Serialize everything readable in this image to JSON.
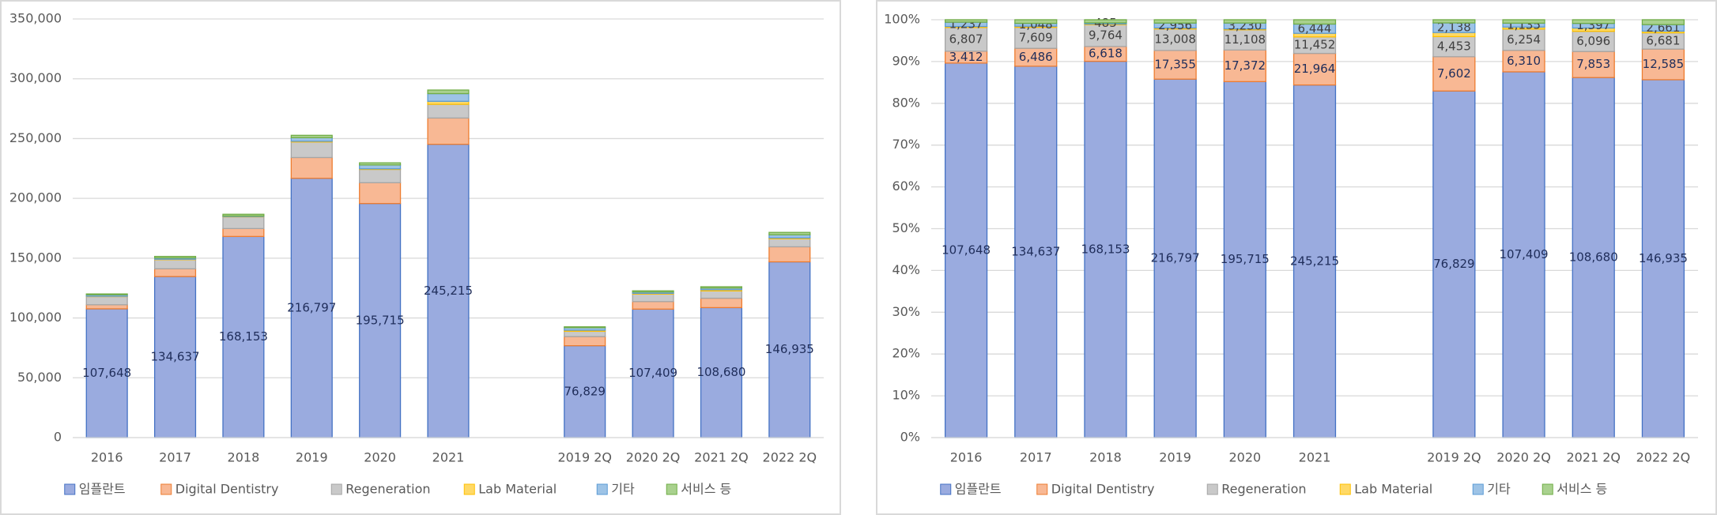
{
  "chart_data": [
    {
      "type": "bar",
      "stacked": "absolute",
      "categories": [
        "2016",
        "2017",
        "2018",
        "2019",
        "2020",
        "2021",
        null,
        "2019 2Q",
        "2020 2Q",
        "2021 2Q",
        "2022 2Q"
      ],
      "ylim": [
        0,
        350000
      ],
      "yticks": [
        0,
        {
          "value": 50000,
          "label": "50,000"
        },
        {
          "value": 100000,
          "label": "100,000"
        },
        {
          "value": 150000,
          "label": "150,000"
        },
        {
          "value": 200000,
          "label": "200,000"
        },
        {
          "value": 250000,
          "label": "250,000"
        },
        {
          "value": 300000,
          "label": "300,000"
        },
        {
          "value": 350000,
          "label": "350,000"
        }
      ],
      "grid": true,
      "legend": "bottom",
      "series": [
        {
          "name": "임플란트",
          "color": "#9aabdf",
          "values": [
            107648,
            134637,
            168153,
            216797,
            195715,
            245215,
            null,
            76829,
            107409,
            108680,
            146935
          ],
          "value_labels": [
            "107,648",
            "134,637",
            "168,153",
            "216,797",
            "195,715",
            "245,215",
            null,
            "76,829",
            "107,409",
            "108,680",
            "146,935"
          ]
        },
        {
          "name": "Digital Dentistry",
          "color": "#f8b894",
          "values": [
            3412,
            6486,
            6618,
            17355,
            17372,
            21964,
            null,
            7602,
            6310,
            7853,
            12585
          ]
        },
        {
          "name": "Regeneration",
          "color": "#c9c9c9",
          "values": [
            6807,
            7609,
            9764,
            13008,
            11108,
            11452,
            null,
            4453,
            6254,
            6096,
            6681
          ]
        },
        {
          "name": "Lab Material",
          "color": "#ffd966",
          "values": [
            300,
            400,
            300,
            600,
            500,
            2500,
            null,
            900,
            600,
            1000,
            700
          ]
        },
        {
          "name": "기타",
          "color": "#9dc3e6",
          "values": [
            1237,
            1048,
            485,
            2956,
            3230,
            6444,
            null,
            2138,
            1135,
            1397,
            2661
          ]
        },
        {
          "name": "서비스 등",
          "color": "#a9d18e",
          "values": [
            700,
            1300,
            1400,
            2000,
            1800,
            3000,
            null,
            700,
            1000,
            1100,
            2000
          ]
        }
      ]
    },
    {
      "type": "bar",
      "stacked": "percent",
      "categories": [
        "2016",
        "2017",
        "2018",
        "2019",
        "2020",
        "2021",
        null,
        "2019 2Q",
        "2020 2Q",
        "2021 2Q",
        "2022 2Q"
      ],
      "ylim": [
        0,
        100
      ],
      "yticks": [
        {
          "value": 0,
          "label": "0%"
        },
        {
          "value": 10,
          "label": "10%"
        },
        {
          "value": 20,
          "label": "20%"
        },
        {
          "value": 30,
          "label": "30%"
        },
        {
          "value": 40,
          "label": "40%"
        },
        {
          "value": 50,
          "label": "50%"
        },
        {
          "value": 60,
          "label": "60%"
        },
        {
          "value": 70,
          "label": "70%"
        },
        {
          "value": 80,
          "label": "80%"
        },
        {
          "value": 90,
          "label": "90%"
        },
        {
          "value": 100,
          "label": "100%"
        }
      ],
      "grid": true,
      "legend": "bottom",
      "series": [
        {
          "name": "임플란트",
          "color": "#9aabdf",
          "values": [
            107648,
            134637,
            168153,
            216797,
            195715,
            245215,
            null,
            76829,
            107409,
            108680,
            146935
          ],
          "value_labels": [
            "107,648",
            "134,637",
            "168,153",
            "216,797",
            "195,715",
            "245,215",
            null,
            "76,829",
            "107,409",
            "108,680",
            "146,935"
          ]
        },
        {
          "name": "Digital Dentistry",
          "color": "#f8b894",
          "values": [
            3412,
            6486,
            6618,
            17355,
            17372,
            21964,
            null,
            7602,
            6310,
            7853,
            12585
          ],
          "value_labels": [
            "3,412",
            "6,486",
            "6,618",
            "17,355",
            "17,372",
            "21,964",
            null,
            "7,602",
            "6,310",
            "7,853",
            "12,585"
          ]
        },
        {
          "name": "Regeneration",
          "color": "#c9c9c9",
          "values": [
            6807,
            7609,
            9764,
            13008,
            11108,
            11452,
            null,
            4453,
            6254,
            6096,
            6681
          ],
          "value_labels": [
            "6,807",
            "7,609",
            "9,764",
            "13,008",
            "11,108",
            "11,452",
            null,
            "4,453",
            "6,254",
            "6,096",
            "6,681"
          ]
        },
        {
          "name": "Lab Material",
          "color": "#ffd966",
          "values": [
            300,
            400,
            300,
            600,
            500,
            2500,
            null,
            900,
            600,
            1000,
            700
          ]
        },
        {
          "name": "기타",
          "color": "#9dc3e6",
          "values": [
            1237,
            1048,
            485,
            2956,
            3230,
            6444,
            null,
            2138,
            1135,
            1397,
            2661
          ],
          "value_labels": [
            "1,237",
            "1,048",
            "485",
            "2,956",
            "3,230",
            "6,444",
            null,
            "2,138",
            "1,135",
            "1,397",
            "2,661"
          ]
        },
        {
          "name": "서비스 등",
          "color": "#a9d18e",
          "values": [
            700,
            1300,
            1400,
            2000,
            1800,
            3000,
            null,
            700,
            1000,
            1100,
            2000
          ]
        }
      ]
    }
  ]
}
